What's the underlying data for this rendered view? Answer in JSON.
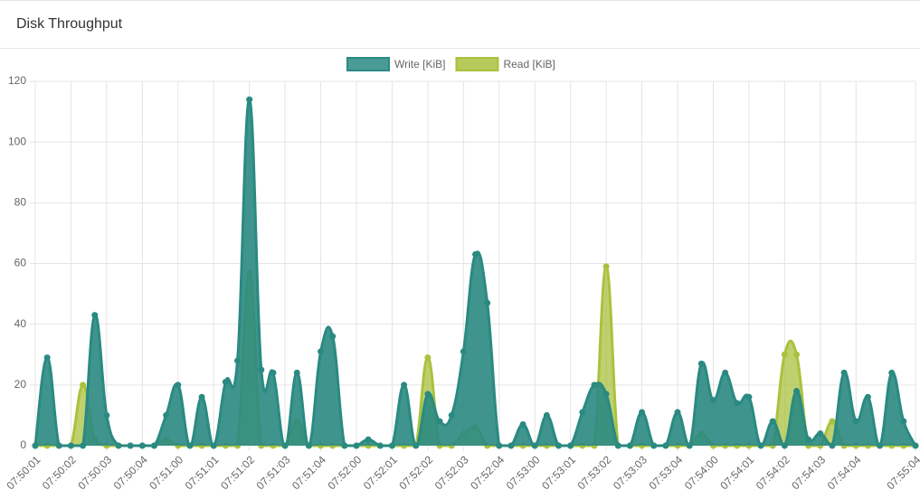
{
  "chart_data": {
    "type": "area",
    "title": "Disk Throughput",
    "categories": [
      "07:50:01",
      null,
      null,
      "07:50:02",
      null,
      null,
      "07:50:03",
      null,
      null,
      "07:50:04",
      null,
      null,
      "07:51:00",
      null,
      null,
      "07:51:01",
      null,
      null,
      "07:51:02",
      null,
      null,
      "07:51:03",
      null,
      null,
      "07:51:04",
      null,
      null,
      "07:52:00",
      null,
      null,
      "07:52:01",
      null,
      null,
      "07:52:02",
      null,
      null,
      "07:52:03",
      null,
      null,
      "07:52:04",
      null,
      null,
      "07:53:00",
      null,
      null,
      "07:53:01",
      null,
      null,
      "07:53:02",
      null,
      null,
      "07:53:03",
      null,
      null,
      "07:53:04",
      null,
      null,
      "07:54:00",
      null,
      null,
      "07:54:01",
      null,
      null,
      "07:54:02",
      null,
      null,
      "07:54:03",
      null,
      null,
      "07:54:04",
      null,
      null,
      null,
      null,
      "07:55:04"
    ],
    "series": [
      {
        "name": "Write [KiB]",
        "color": "#2a8a82",
        "values": [
          0,
          29,
          0,
          0,
          0,
          43,
          10,
          0,
          0,
          0,
          0,
          10,
          20,
          0,
          16,
          0,
          21,
          28,
          114,
          25,
          24,
          0,
          24,
          0,
          31,
          36,
          0,
          0,
          2,
          0,
          0,
          20,
          0,
          17,
          8,
          10,
          31,
          63,
          47,
          0,
          0,
          7,
          0,
          10,
          0,
          0,
          11,
          20,
          17,
          0,
          0,
          11,
          0,
          0,
          11,
          0,
          27,
          15,
          24,
          14,
          16,
          0,
          8,
          0,
          18,
          2,
          4,
          0,
          24,
          8,
          16,
          0,
          24,
          8,
          0
        ]
      },
      {
        "name": "Read [KiB]",
        "color": "#a9c23d",
        "values": [
          0,
          0,
          0,
          0,
          20,
          2,
          0,
          0,
          0,
          0,
          0,
          2,
          0,
          0,
          0,
          0,
          0,
          0,
          57,
          0,
          0,
          0,
          8,
          0,
          0,
          0,
          0,
          0,
          0,
          0,
          0,
          0,
          0,
          29,
          0,
          0,
          4,
          6,
          0,
          0,
          0,
          0,
          0,
          0,
          0,
          0,
          0,
          0,
          59,
          0,
          0,
          0,
          0,
          0,
          0,
          0,
          4,
          0,
          0,
          0,
          0,
          0,
          0,
          30,
          30,
          0,
          0,
          8,
          0,
          0,
          0,
          0,
          0,
          0,
          0
        ]
      }
    ],
    "ylim": [
      0,
      120
    ],
    "yticks": [
      0,
      20,
      40,
      60,
      80,
      100,
      120
    ],
    "grid": true,
    "legend": "top"
  }
}
